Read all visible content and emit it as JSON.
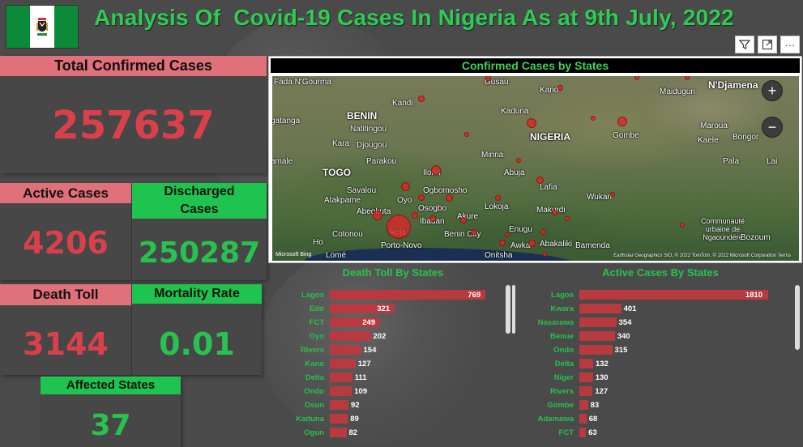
{
  "header": {
    "title": "Analysis Of  Covid-19 Cases In Nigeria As at 9th July, 2022",
    "flag_colors": {
      "green": "#0b8a3a",
      "white": "#ffffff"
    }
  },
  "toolbar": {
    "filter_icon": "filter-icon",
    "focus_icon": "focus-mode-icon",
    "more_icon": "more-options-icon",
    "more_label": "···"
  },
  "cards": {
    "total_confirmed": {
      "label": "Total Confirmed Cases",
      "value": "257637"
    },
    "active": {
      "label": "Active Cases",
      "value": "4206"
    },
    "discharged": {
      "label": "Discharged Cases",
      "value": "250287"
    },
    "death": {
      "label": "Death Toll",
      "value": "3144"
    },
    "mortality": {
      "label": "Mortality Rate",
      "value": "0.01"
    },
    "affected": {
      "label": "Affected States",
      "value": "37"
    }
  },
  "map": {
    "title": "Confirmed Cases by States",
    "zoom_in": "+",
    "zoom_out": "−",
    "attribution": "Earthstar Geographics SIO, © 2022 TomTom, © 2022 Microsoft Corporation  Terms",
    "bing": "Microsoft Bing",
    "labels": [
      {
        "text": "Fada N'Gourma"
      },
      {
        "text": "Gusau"
      },
      {
        "text": "Kano"
      },
      {
        "text": "Maiduguri"
      },
      {
        "text": "N'Djamena"
      },
      {
        "text": "BENIN"
      },
      {
        "text": "Kandi"
      },
      {
        "text": "Kaduna"
      },
      {
        "text": "NIGERIA"
      },
      {
        "text": "Gombe"
      },
      {
        "text": "Maroua"
      },
      {
        "text": "Kaele"
      },
      {
        "text": "Bongor"
      },
      {
        "text": "Natitingou"
      },
      {
        "text": "Djougou"
      },
      {
        "text": "Kara"
      },
      {
        "text": "Parakou"
      },
      {
        "text": "Minna"
      },
      {
        "text": "TOGO"
      },
      {
        "text": "Ilorin"
      },
      {
        "text": "Abuja"
      },
      {
        "text": "Lafia"
      },
      {
        "text": "Pala"
      },
      {
        "text": "Lai"
      },
      {
        "text": "Savalou"
      },
      {
        "text": "Ogbomosho"
      },
      {
        "text": "Oyo"
      },
      {
        "text": "Wukari"
      },
      {
        "text": "Atakpame"
      },
      {
        "text": "Osogbo"
      },
      {
        "text": "Lokoja"
      },
      {
        "text": "Makurdi"
      },
      {
        "text": "Abeokuta"
      },
      {
        "text": "Ibadan"
      },
      {
        "text": "Akure"
      },
      {
        "text": "Enugu"
      },
      {
        "text": "Communauté urbaine de Ngaoundéré"
      },
      {
        "text": "Cotonou"
      },
      {
        "text": "Benin City"
      },
      {
        "text": "Ikeja"
      },
      {
        "text": "Porto-Novo"
      },
      {
        "text": "Awka"
      },
      {
        "text": "Abakaliki"
      },
      {
        "text": "Bamenda"
      },
      {
        "text": "Bozoum"
      },
      {
        "text": "Lomé"
      },
      {
        "text": "Onitsha"
      },
      {
        "text": "gatanga"
      },
      {
        "text": "amale"
      },
      {
        "text": "Ho"
      }
    ]
  },
  "death_chart": {
    "title": "Death Toll By States",
    "chart_data": {
      "type": "bar",
      "orientation": "horizontal",
      "title": "Death Toll By States",
      "categories": [
        "Lagos",
        "Edo",
        "FCT",
        "Oyo",
        "Rivers",
        "Kano",
        "Delta",
        "Ondo",
        "Osun",
        "Kaduna",
        "Ogun"
      ],
      "values": [
        769,
        321,
        249,
        202,
        154,
        127,
        111,
        109,
        92,
        89,
        82
      ],
      "labels": [
        "769",
        "321",
        "249",
        "202",
        "154",
        "127",
        "111",
        "109",
        "92",
        "89",
        "82"
      ],
      "xlim": [
        0,
        800
      ],
      "bar_color": "#b8393f"
    }
  },
  "active_chart": {
    "title": "Active Cases By States",
    "chart_data": {
      "type": "bar",
      "orientation": "horizontal",
      "title": "Active Cases By States",
      "categories": [
        "Lagos",
        "Kwara",
        "Nasarawa",
        "Benue",
        "Ondo",
        "Delta",
        "Niger",
        "Rivers",
        "Gombe",
        "Adamawa",
        "FCT"
      ],
      "values": [
        1810,
        401,
        354,
        340,
        315,
        132,
        130,
        127,
        83,
        68,
        63
      ],
      "labels": [
        "1810",
        "401",
        "354",
        "340",
        "315",
        "132",
        "130",
        "127",
        "83",
        "68",
        "63"
      ],
      "xlim": [
        0,
        1850
      ],
      "bar_color": "#b8393f"
    }
  }
}
